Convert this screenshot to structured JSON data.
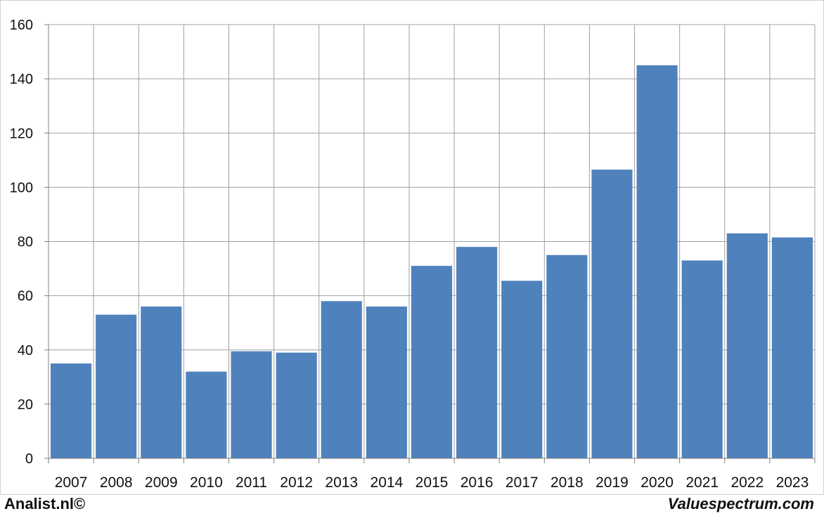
{
  "footer": {
    "left_text": "Analist.nl©",
    "right_text": "Valuespectrum.com"
  },
  "chart_data": {
    "type": "bar",
    "categories": [
      "2007",
      "2008",
      "2009",
      "2010",
      "2011",
      "2012",
      "2013",
      "2014",
      "2015",
      "2016",
      "2017",
      "2018",
      "2019",
      "2020",
      "2021",
      "2022",
      "2023"
    ],
    "values": [
      35,
      53,
      56,
      32,
      39.5,
      39,
      58,
      56,
      71,
      78,
      65.5,
      75,
      106.5,
      145,
      73,
      83,
      81.5
    ],
    "title": "",
    "xlabel": "",
    "ylabel": "",
    "ylim": [
      0,
      160
    ],
    "yticks": [
      0,
      20,
      40,
      60,
      80,
      100,
      120,
      140,
      160
    ],
    "grid": true,
    "legend": "none",
    "bar_color": "#4f81bd",
    "grid_color": "#a0a0a0"
  }
}
